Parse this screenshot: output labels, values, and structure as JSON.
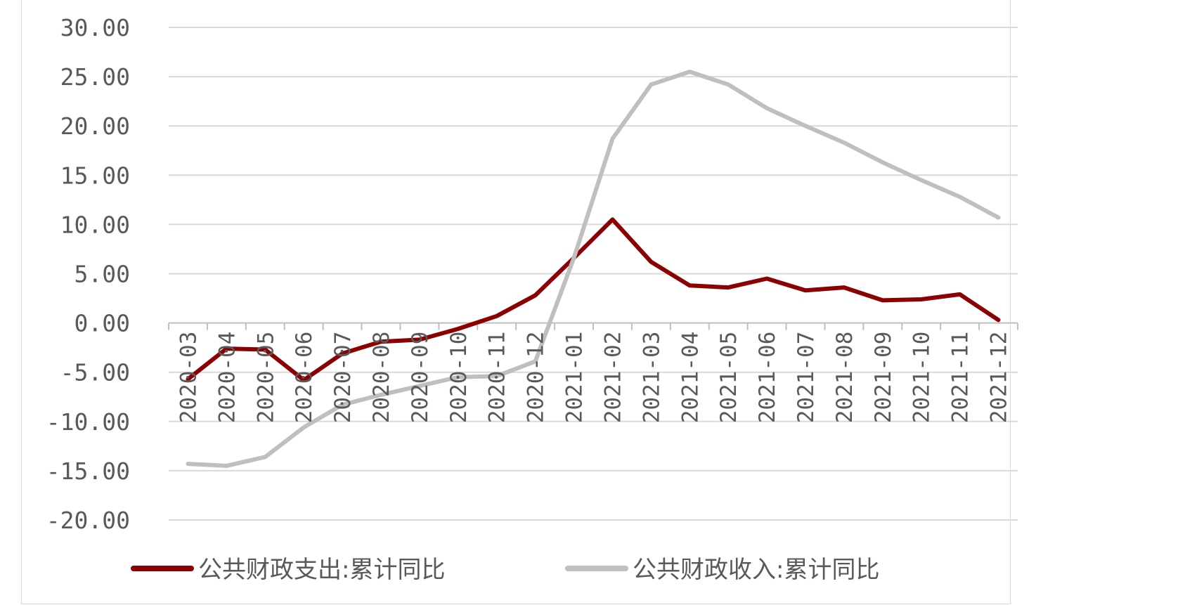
{
  "chart_data": {
    "type": "line",
    "title": "",
    "xlabel": "",
    "ylabel": "",
    "categories": [
      "2020-03",
      "2020-04",
      "2020-05",
      "2020-06",
      "2020-07",
      "2020-08",
      "2020-09",
      "2020-10",
      "2020-11",
      "2020-12",
      "2021-01",
      "2021-02",
      "2021-03",
      "2021-04",
      "2021-05",
      "2021-06",
      "2021-07",
      "2021-08",
      "2021-09",
      "2021-10",
      "2021-11",
      "2021-12"
    ],
    "y_ticks": [
      "30.00",
      "25.00",
      "20.00",
      "15.00",
      "10.00",
      "5.00",
      "0.00",
      "-5.00",
      "-10.00",
      "-15.00",
      "-20.00"
    ],
    "ylim": [
      -20,
      30
    ],
    "grid": true,
    "legend_position": "bottom",
    "series": [
      {
        "name": "公共财政支出:累计同比",
        "color": "#8b0000",
        "values": [
          -5.7,
          -2.6,
          -2.7,
          -5.8,
          -3.1,
          -1.9,
          -1.7,
          -0.6,
          0.7,
          2.8,
          6.6,
          10.5,
          6.2,
          3.8,
          3.6,
          4.5,
          3.3,
          3.6,
          2.3,
          2.4,
          2.9,
          0.3
        ]
      },
      {
        "name": "公共财政收入:累计同比",
        "color": "#bfbfbf",
        "values": [
          -14.3,
          -14.5,
          -13.6,
          -10.6,
          -8.3,
          -7.3,
          -6.4,
          -5.5,
          -5.4,
          -3.9,
          6.6,
          18.7,
          24.2,
          25.5,
          24.2,
          21.8,
          20.0,
          18.3,
          16.3,
          14.5,
          12.8,
          10.7
        ]
      }
    ]
  }
}
